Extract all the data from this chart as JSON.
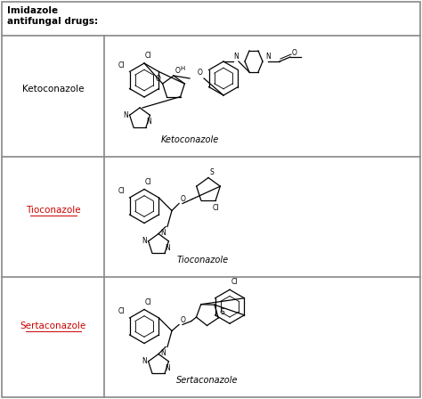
{
  "title": "Imidazole\nantifungal drugs:",
  "rows": [
    {
      "label": "Ketoconazole",
      "label_underline": false,
      "label_color": "black",
      "compound_name": "Ketoconazole"
    },
    {
      "label": "Tioconazole",
      "label_underline": true,
      "label_color": "#cc0000",
      "compound_name": "Tioconazole"
    },
    {
      "label": "Sertaconazole",
      "label_underline": true,
      "label_color": "#cc0000",
      "compound_name": "Sertaconazole"
    }
  ],
  "border_color": "#888888",
  "figsize": [
    4.74,
    4.48
  ],
  "dpi": 100
}
